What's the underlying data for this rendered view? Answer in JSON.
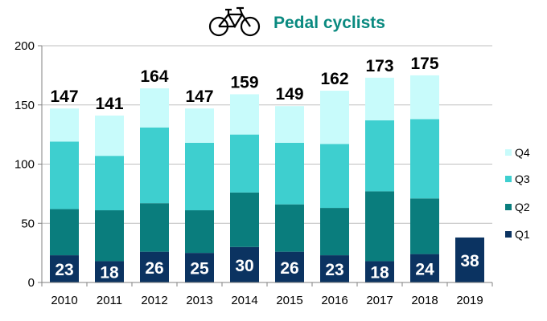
{
  "title": "Pedal cyclists",
  "icon": "bicycle-icon",
  "colors": {
    "Q1": "#0b3361",
    "Q2": "#0a7d7d",
    "Q3": "#3ecfcf",
    "Q4": "#c8fbfb",
    "title": "#0a8a80"
  },
  "chart_data": {
    "type": "bar",
    "stacked": true,
    "title": "Pedal cyclists",
    "categories": [
      "2010",
      "2011",
      "2012",
      "2013",
      "2014",
      "2015",
      "2016",
      "2017",
      "2018",
      "2019"
    ],
    "series": [
      {
        "name": "Q1",
        "values": [
          23,
          18,
          26,
          25,
          30,
          26,
          23,
          18,
          24,
          38
        ]
      },
      {
        "name": "Q2",
        "values": [
          39,
          43,
          41,
          36,
          46,
          40,
          40,
          59,
          47,
          0
        ]
      },
      {
        "name": "Q3",
        "values": [
          57,
          46,
          64,
          57,
          49,
          52,
          54,
          60,
          67,
          0
        ]
      },
      {
        "name": "Q4",
        "values": [
          28,
          34,
          33,
          29,
          34,
          31,
          45,
          36,
          37,
          0
        ]
      }
    ],
    "totals": [
      147,
      141,
      164,
      147,
      159,
      149,
      162,
      173,
      175,
      null
    ],
    "ylim": [
      0,
      200
    ],
    "yticks": [
      0,
      50,
      100,
      150,
      200
    ],
    "grid": true,
    "legend": "right"
  }
}
